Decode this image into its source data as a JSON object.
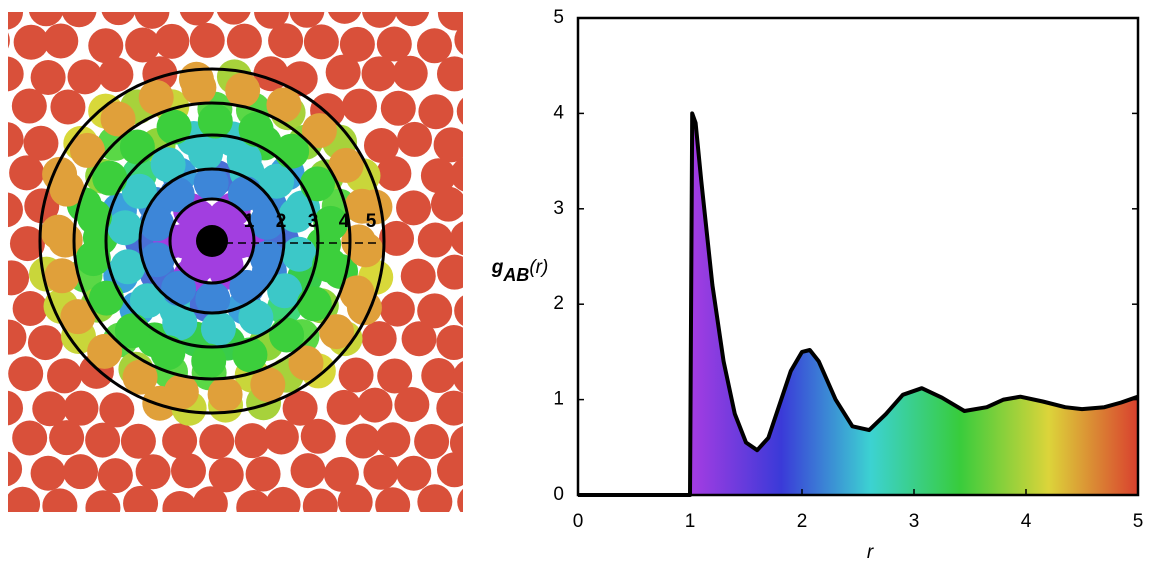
{
  "chart_data": {
    "type": "area",
    "xlabel": "r",
    "ylabel": [
      "g",
      "AB",
      "(r)"
    ],
    "x": [
      0,
      1,
      1.02,
      1.05,
      1.1,
      1.2,
      1.3,
      1.4,
      1.5,
      1.6,
      1.7,
      1.8,
      1.9,
      2.0,
      2.07,
      2.15,
      2.3,
      2.45,
      2.6,
      2.75,
      2.9,
      3.07,
      3.25,
      3.45,
      3.65,
      3.8,
      3.95,
      4.15,
      4.35,
      4.5,
      4.7,
      4.85,
      5
    ],
    "values": [
      0,
      0,
      4.0,
      3.9,
      3.3,
      2.2,
      1.4,
      0.85,
      0.55,
      0.47,
      0.6,
      0.95,
      1.3,
      1.5,
      1.52,
      1.4,
      1.0,
      0.72,
      0.68,
      0.85,
      1.05,
      1.12,
      1.02,
      0.88,
      0.92,
      1.0,
      1.03,
      0.98,
      0.92,
      0.9,
      0.92,
      0.97,
      1.03
    ],
    "fill_colors": [
      "#a43ce2",
      "#3a3ad8",
      "#3cd2d2",
      "#38cc3c",
      "#dcd43a",
      "#d9402e"
    ],
    "line_color": "#000000",
    "xlim": [
      0,
      5
    ],
    "xticks": [
      0,
      1,
      2,
      3,
      4,
      5
    ],
    "ylim": [
      0,
      5
    ],
    "yticks": [
      0,
      1,
      2,
      3,
      4,
      5
    ]
  },
  "diagram": {
    "shell_labels": [
      "1",
      "2",
      "3",
      "4",
      "5"
    ]
  }
}
